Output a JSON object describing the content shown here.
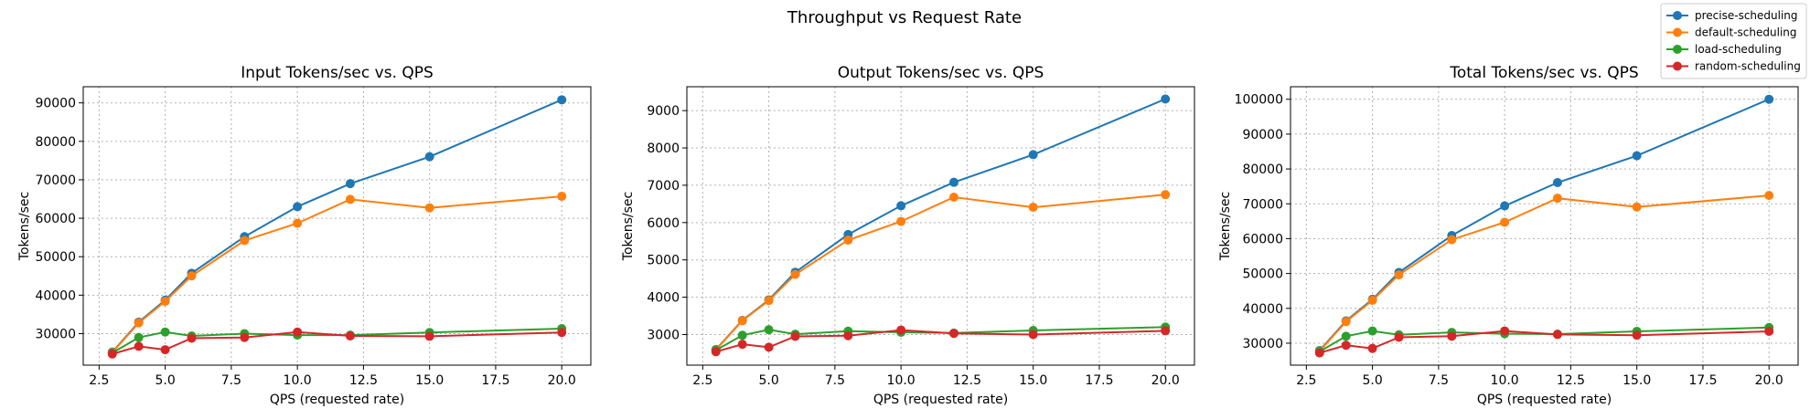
{
  "figure": {
    "suptitle": "Throughput vs Request Rate"
  },
  "legend": {
    "placement": "top-right",
    "entries": [
      {
        "name": "precise-scheduling",
        "color": "#1f77b4"
      },
      {
        "name": "default-scheduling",
        "color": "#ff7f0e"
      },
      {
        "name": "load-scheduling",
        "color": "#2ca02c"
      },
      {
        "name": "random-scheduling",
        "color": "#d62728"
      }
    ]
  },
  "chart_data": [
    {
      "type": "line",
      "title": "Input Tokens/sec vs. QPS",
      "xlabel": "QPS (requested rate)",
      "ylabel": "Tokens/sec",
      "grid": true,
      "xlim": [
        1.9,
        21.1
      ],
      "ylim": [
        21800,
        94200
      ],
      "xticks": [
        2.5,
        5,
        7.5,
        10,
        12.5,
        15,
        17.5,
        20
      ],
      "xtick_labels": [
        "2.5",
        "5.0",
        "7.5",
        "10.0",
        "12.5",
        "15.0",
        "17.5",
        "20.0"
      ],
      "yticks": [
        30000,
        40000,
        50000,
        60000,
        70000,
        80000,
        90000
      ],
      "ytick_labels": [
        "30000",
        "40000",
        "50000",
        "60000",
        "70000",
        "80000",
        "90000"
      ],
      "x": [
        3,
        4,
        5,
        6,
        8,
        10,
        12,
        15,
        20
      ],
      "series": [
        {
          "name": "precise-scheduling",
          "color": "#1f77b4",
          "values": [
            25200,
            33000,
            38700,
            45700,
            55200,
            63000,
            69000,
            76000,
            90800
          ]
        },
        {
          "name": "default-scheduling",
          "color": "#ff7f0e",
          "values": [
            25100,
            32800,
            38400,
            45000,
            54200,
            58700,
            64900,
            62700,
            65700
          ]
        },
        {
          "name": "load-scheduling",
          "color": "#2ca02c",
          "values": [
            25000,
            29000,
            30400,
            29400,
            30000,
            29600,
            29600,
            30300,
            31300
          ]
        },
        {
          "name": "random-scheduling",
          "color": "#d62728",
          "values": [
            24700,
            26700,
            25800,
            28800,
            29000,
            30400,
            29400,
            29300,
            30300
          ]
        }
      ]
    },
    {
      "type": "line",
      "title": "Output Tokens/sec vs. QPS",
      "xlabel": "QPS (requested rate)",
      "ylabel": "Tokens/sec",
      "grid": true,
      "xlim": [
        1.9,
        21.1
      ],
      "ylim": [
        2180,
        9640
      ],
      "xticks": [
        2.5,
        5,
        7.5,
        10,
        12.5,
        15,
        17.5,
        20
      ],
      "xtick_labels": [
        "2.5",
        "5.0",
        "7.5",
        "10.0",
        "12.5",
        "15.0",
        "17.5",
        "20.0"
      ],
      "yticks": [
        3000,
        4000,
        5000,
        6000,
        7000,
        8000,
        9000
      ],
      "ytick_labels": [
        "3000",
        "4000",
        "5000",
        "6000",
        "7000",
        "8000",
        "9000"
      ],
      "x": [
        3,
        4,
        5,
        6,
        8,
        10,
        12,
        15,
        20
      ],
      "series": [
        {
          "name": "precise-scheduling",
          "color": "#1f77b4",
          "values": [
            2600,
            3380,
            3930,
            4670,
            5680,
            6450,
            7080,
            7820,
            9310
          ]
        },
        {
          "name": "default-scheduling",
          "color": "#ff7f0e",
          "values": [
            2590,
            3370,
            3910,
            4610,
            5530,
            6030,
            6680,
            6410,
            6750
          ]
        },
        {
          "name": "load-scheduling",
          "color": "#2ca02c",
          "values": [
            2580,
            2980,
            3130,
            3010,
            3090,
            3060,
            3040,
            3110,
            3200
          ]
        },
        {
          "name": "random-scheduling",
          "color": "#d62728",
          "values": [
            2540,
            2740,
            2660,
            2950,
            2970,
            3120,
            3030,
            3000,
            3100
          ]
        }
      ]
    },
    {
      "type": "line",
      "title": "Total Tokens/sec vs. QPS",
      "xlabel": "QPS (requested rate)",
      "ylabel": "Tokens/sec",
      "grid": true,
      "xlim": [
        1.9,
        21.1
      ],
      "ylim": [
        23700,
        103600
      ],
      "xticks": [
        2.5,
        5,
        7.5,
        10,
        12.5,
        15,
        17.5,
        20
      ],
      "xtick_labels": [
        "2.5",
        "5.0",
        "7.5",
        "10.0",
        "12.5",
        "15.0",
        "17.5",
        "20.0"
      ],
      "yticks": [
        30000,
        40000,
        50000,
        60000,
        70000,
        80000,
        90000,
        100000
      ],
      "ytick_labels": [
        "30000",
        "40000",
        "50000",
        "60000",
        "70000",
        "80000",
        "90000",
        "100000"
      ],
      "x": [
        3,
        4,
        5,
        6,
        8,
        10,
        12,
        15,
        20
      ],
      "series": [
        {
          "name": "precise-scheduling",
          "color": "#1f77b4",
          "values": [
            27900,
            36400,
            42600,
            50300,
            60900,
            69400,
            76100,
            83800,
            100000
          ]
        },
        {
          "name": "default-scheduling",
          "color": "#ff7f0e",
          "values": [
            27700,
            36200,
            42300,
            49600,
            59700,
            64700,
            71600,
            69100,
            72400
          ]
        },
        {
          "name": "load-scheduling",
          "color": "#2ca02c",
          "values": [
            27600,
            32000,
            33500,
            32400,
            33100,
            32700,
            32600,
            33400,
            34500
          ]
        },
        {
          "name": "random-scheduling",
          "color": "#d62728",
          "values": [
            27200,
            29400,
            28500,
            31700,
            32000,
            33500,
            32500,
            32300,
            33400
          ]
        }
      ]
    }
  ]
}
